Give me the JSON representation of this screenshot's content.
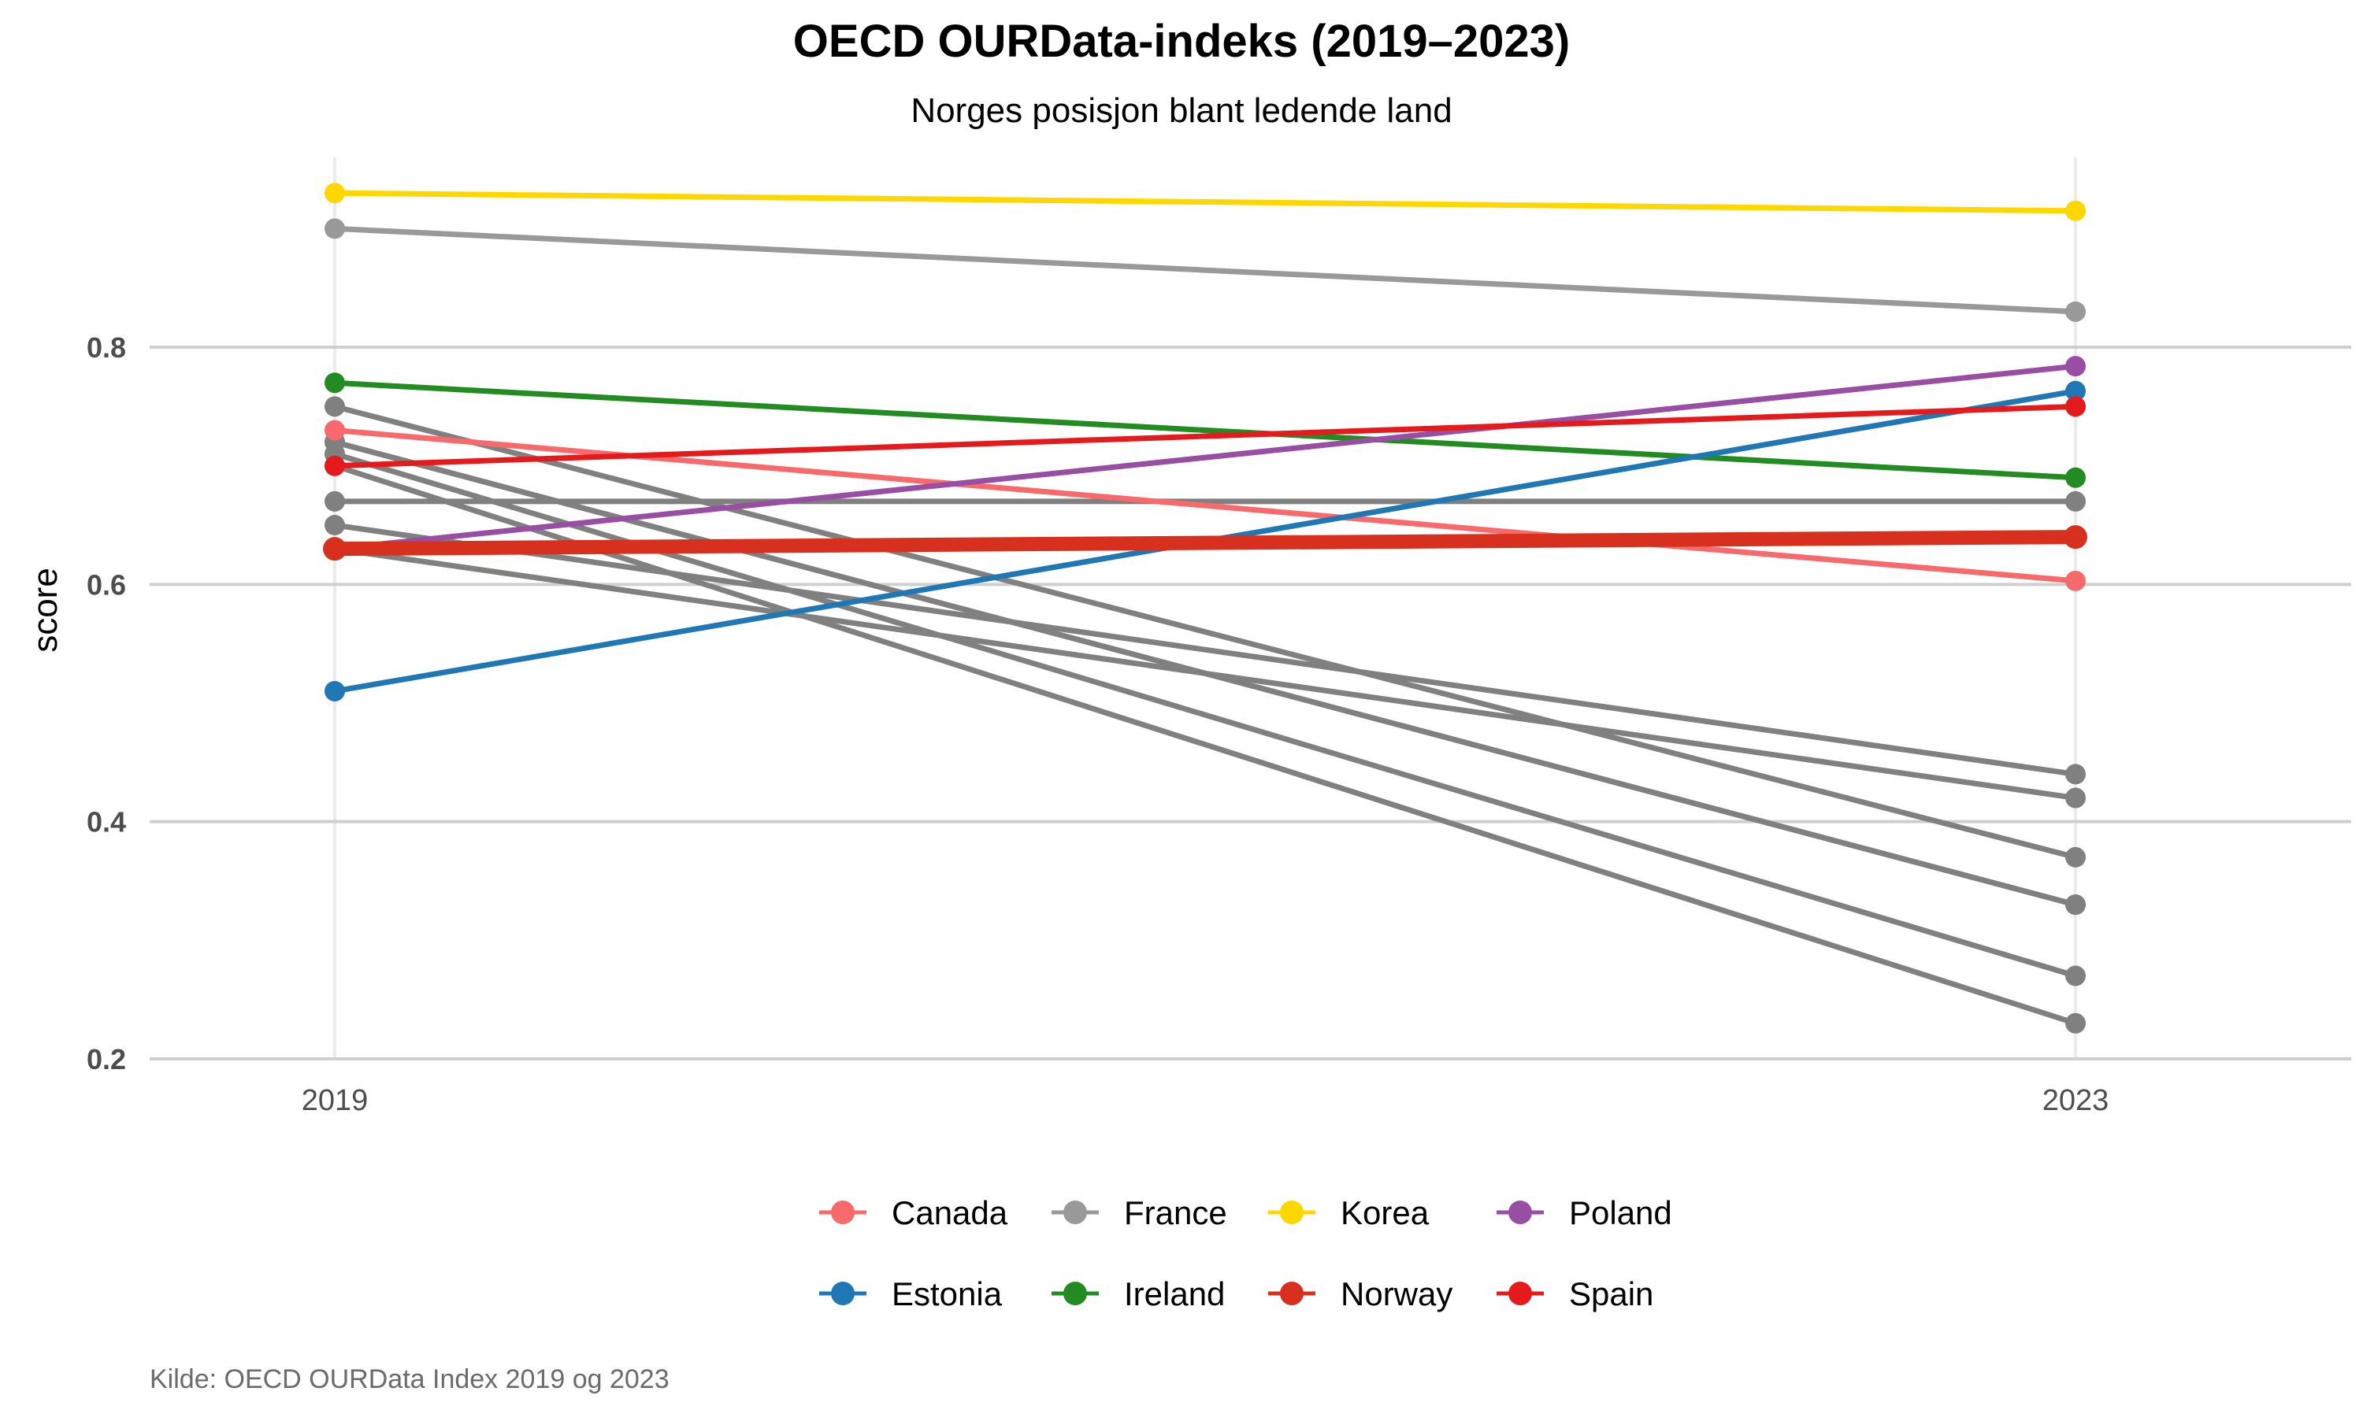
{
  "chart_data": {
    "type": "line",
    "title": "OECD OURData-indeks (2019–2023)",
    "subtitle": "Norges posisjon blant ledende land",
    "ylabel": "score",
    "xlabel": "",
    "caption": "Kilde: OECD OURData Index 2019 og 2023",
    "x": [
      "2019",
      "2023"
    ],
    "ylim": [
      0.2,
      0.96
    ],
    "yticks": [
      "0.2",
      "0.4",
      "0.6",
      "0.8"
    ],
    "ytick_values": [
      0.2,
      0.4,
      0.6,
      0.8
    ],
    "grid": true,
    "legend_position": "bottom",
    "legend": [
      {
        "name": "Canada",
        "color": "#F8696B"
      },
      {
        "name": "France",
        "color": "#999999"
      },
      {
        "name": "Korea",
        "color": "#FFD700"
      },
      {
        "name": "Poland",
        "color": "#984EA3"
      },
      {
        "name": "Estonia",
        "color": "#1F78B4"
      },
      {
        "name": "Ireland",
        "color": "#228B22"
      },
      {
        "name": "Norway",
        "color": "#D7301F"
      },
      {
        "name": "Spain",
        "color": "#E41A1C"
      }
    ],
    "series": [
      {
        "values": [
          0.72,
          0.33
        ],
        "color": "#808080",
        "emphasis": "other"
      },
      {
        "values": [
          0.7,
          0.23
        ],
        "color": "#808080",
        "emphasis": "other"
      },
      {
        "values": [
          0.75,
          0.37
        ],
        "color": "#808080",
        "emphasis": "other"
      },
      {
        "values": [
          0.65,
          0.44
        ],
        "color": "#808080",
        "emphasis": "other"
      },
      {
        "values": [
          0.71,
          0.27
        ],
        "color": "#808080",
        "emphasis": "other"
      },
      {
        "values": [
          0.63,
          0.42
        ],
        "color": "#808080",
        "emphasis": "other"
      },
      {
        "values": [
          0.67,
          0.67
        ],
        "color": "#808080",
        "emphasis": "other"
      },
      {
        "values": [
          0.72,
          0.33
        ],
        "color": "#808080",
        "emphasis": "other"
      },
      {
        "name": "France",
        "values": [
          0.9,
          0.83
        ],
        "color": "#999999",
        "emphasis": "normal"
      },
      {
        "name": "Korea",
        "values": [
          0.93,
          0.915
        ],
        "color": "#FFD700",
        "emphasis": "normal"
      },
      {
        "name": "Canada",
        "values": [
          0.73,
          0.603
        ],
        "color": "#F8696B",
        "emphasis": "normal"
      },
      {
        "name": "Ireland",
        "values": [
          0.77,
          0.69
        ],
        "color": "#228B22",
        "emphasis": "normal"
      },
      {
        "name": "Poland",
        "values": [
          0.63,
          0.784
        ],
        "color": "#984EA3",
        "emphasis": "normal"
      },
      {
        "name": "Estonia",
        "values": [
          0.51,
          0.763
        ],
        "color": "#1F78B4",
        "emphasis": "normal"
      },
      {
        "name": "Spain",
        "values": [
          0.7,
          0.75
        ],
        "color": "#E41A1C",
        "emphasis": "normal"
      },
      {
        "name": "Norway",
        "values": [
          0.63,
          0.64
        ],
        "color": "#D7301F",
        "emphasis": "highlight"
      }
    ]
  }
}
